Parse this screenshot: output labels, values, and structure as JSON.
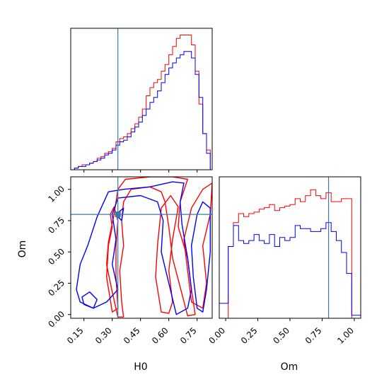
{
  "chart_data": {
    "type": "corner",
    "parameters": [
      "H0",
      "Om"
    ],
    "truths": {
      "H0": 0.33,
      "Om": 0.8
    },
    "truth_color": "#3a78a8",
    "series": [
      {
        "color": "#ff0000"
      },
      {
        "color": "#0000ff"
      }
    ],
    "panels": [
      {
        "id": "hist-H0",
        "type": "step-histogram",
        "param": "H0",
        "xlim": [
          0.08,
          0.83
        ],
        "bin_edges": [
          0.08,
          0.1,
          0.12,
          0.14,
          0.16,
          0.18,
          0.2,
          0.22,
          0.24,
          0.26,
          0.28,
          0.3,
          0.32,
          0.34,
          0.36,
          0.38,
          0.4,
          0.42,
          0.44,
          0.46,
          0.48,
          0.5,
          0.52,
          0.54,
          0.56,
          0.58,
          0.6,
          0.62,
          0.64,
          0.66,
          0.68,
          0.7,
          0.72,
          0.74,
          0.76,
          0.78,
          0.8,
          0.82
        ],
        "counts": [
          [
            0,
            1,
            2,
            3,
            3,
            4,
            5,
            7,
            8,
            10,
            11,
            13,
            17,
            19,
            20,
            22,
            25,
            28,
            32,
            37,
            45,
            50,
            53,
            55,
            60,
            64,
            70,
            75,
            80,
            82,
            82,
            82,
            76,
            60,
            40,
            22,
            12
          ],
          [
            0,
            1,
            2,
            2,
            3,
            4,
            5,
            6,
            7,
            9,
            10,
            12,
            15,
            17,
            18,
            20,
            23,
            26,
            29,
            33,
            37,
            41,
            44,
            48,
            53,
            58,
            62,
            65,
            68,
            70,
            72,
            72,
            68,
            58,
            44,
            22,
            10
          ]
        ],
        "ticks": [
          0.15,
          0.3,
          0.45,
          0.6,
          0.75
        ]
      },
      {
        "id": "contour-H0-Om",
        "type": "contour",
        "xparam": "H0",
        "yparam": "Om",
        "xlim": [
          0.08,
          0.83
        ],
        "ylim": [
          -0.03,
          1.1
        ],
        "xticks": [
          "0.15",
          "0.30",
          "0.45",
          "0.60",
          "0.75"
        ],
        "yticks": [
          "0.00",
          "0.25",
          "0.50",
          "0.75",
          "1.00"
        ],
        "contours": [
          {
            "series": 0,
            "points": [
              [
                0.33,
                -0.02
              ],
              [
                0.3,
                0.18
              ],
              [
                0.27,
                0.4
              ],
              [
                0.28,
                0.58
              ],
              [
                0.31,
                0.8
              ],
              [
                0.33,
                1.0
              ],
              [
                0.37,
                1.08
              ],
              [
                0.5,
                1.1
              ],
              [
                0.62,
                1.1
              ],
              [
                0.7,
                1.08
              ],
              [
                0.66,
                0.9
              ],
              [
                0.65,
                0.7
              ],
              [
                0.7,
                0.45
              ],
              [
                0.72,
                0.2
              ],
              [
                0.74,
                0.0
              ],
              [
                0.7,
                -0.01
              ],
              [
                0.66,
                0.22
              ],
              [
                0.62,
                0.45
              ],
              [
                0.6,
                0.7
              ],
              [
                0.58,
                0.9
              ],
              [
                0.56,
                0.98
              ],
              [
                0.5,
                1.02
              ],
              [
                0.4,
                1.0
              ],
              [
                0.36,
                0.9
              ],
              [
                0.35,
                0.75
              ],
              [
                0.36,
                0.55
              ],
              [
                0.34,
                0.35
              ],
              [
                0.35,
                0.1
              ],
              [
                0.36,
                -0.02
              ]
            ]
          },
          {
            "series": 0,
            "points": [
              [
                0.3,
                0.02
              ],
              [
                0.27,
                0.3
              ],
              [
                0.28,
                0.55
              ],
              [
                0.3,
                0.7
              ],
              [
                0.29,
                0.8
              ],
              [
                0.31,
                0.86
              ],
              [
                0.33,
                0.75
              ],
              [
                0.32,
                0.55
              ],
              [
                0.32,
                0.3
              ],
              [
                0.33,
                0.05
              ]
            ]
          },
          {
            "series": 0,
            "points": [
              [
                0.56,
                0.02
              ],
              [
                0.53,
                0.3
              ],
              [
                0.54,
                0.55
              ],
              [
                0.56,
                0.85
              ],
              [
                0.61,
                0.95
              ],
              [
                0.65,
                0.86
              ],
              [
                0.62,
                0.6
              ],
              [
                0.6,
                0.35
              ],
              [
                0.62,
                0.1
              ],
              [
                0.6,
                0.01
              ]
            ]
          },
          {
            "series": 0,
            "points": [
              [
                0.72,
                0.1
              ],
              [
                0.7,
                0.35
              ],
              [
                0.68,
                0.6
              ],
              [
                0.72,
                0.85
              ],
              [
                0.78,
                1.0
              ],
              [
                0.83,
                1.05
              ],
              [
                0.82,
                0.8
              ],
              [
                0.78,
                0.55
              ],
              [
                0.8,
                0.25
              ],
              [
                0.78,
                0.05
              ]
            ]
          },
          {
            "series": 1,
            "points": [
              [
                0.11,
                0.2
              ],
              [
                0.13,
                0.4
              ],
              [
                0.17,
                0.55
              ],
              [
                0.22,
                0.78
              ],
              [
                0.28,
                0.98
              ],
              [
                0.36,
                1.0
              ],
              [
                0.5,
                1.02
              ],
              [
                0.62,
                1.06
              ],
              [
                0.68,
                1.05
              ],
              [
                0.66,
                0.9
              ],
              [
                0.67,
                0.72
              ],
              [
                0.7,
                0.45
              ],
              [
                0.72,
                0.2
              ],
              [
                0.7,
                0.05
              ],
              [
                0.64,
                0.0
              ],
              [
                0.6,
                0.25
              ],
              [
                0.56,
                0.5
              ],
              [
                0.57,
                0.75
              ],
              [
                0.54,
                0.9
              ],
              [
                0.45,
                0.95
              ],
              [
                0.33,
                0.93
              ],
              [
                0.3,
                0.8
              ],
              [
                0.32,
                0.6
              ],
              [
                0.3,
                0.4
              ],
              [
                0.33,
                0.2
              ],
              [
                0.27,
                0.1
              ],
              [
                0.2,
                0.05
              ],
              [
                0.13,
                0.1
              ]
            ]
          },
          {
            "series": 1,
            "points": [
              [
                0.14,
                0.14
              ],
              [
                0.18,
                0.18
              ],
              [
                0.22,
                0.12
              ],
              [
                0.2,
                0.05
              ],
              [
                0.15,
                0.08
              ]
            ]
          },
          {
            "series": 1,
            "points": [
              [
                0.75,
                0.05
              ],
              [
                0.73,
                0.3
              ],
              [
                0.72,
                0.55
              ],
              [
                0.75,
                0.8
              ],
              [
                0.78,
                0.9
              ],
              [
                0.82,
                0.85
              ],
              [
                0.82,
                0.5
              ],
              [
                0.8,
                0.2
              ],
              [
                0.78,
                0.02
              ]
            ]
          },
          {
            "series": 1,
            "points": [
              [
                0.32,
                0.8
              ],
              [
                0.35,
                0.75
              ],
              [
                0.36,
                0.85
              ]
            ]
          }
        ]
      },
      {
        "id": "hist-Om",
        "type": "step-histogram",
        "param": "Om",
        "xlim": [
          -0.05,
          1.05
        ],
        "bin_edges": [
          -0.05,
          0.0,
          0.02,
          0.06,
          0.1,
          0.14,
          0.18,
          0.22,
          0.26,
          0.3,
          0.34,
          0.38,
          0.42,
          0.46,
          0.5,
          0.54,
          0.58,
          0.62,
          0.66,
          0.7,
          0.74,
          0.78,
          0.82,
          0.86,
          0.9,
          0.94,
          0.98,
          1.02,
          1.05
        ],
        "counts": [
          [
            0,
            0,
            48,
            64,
            70,
            68,
            70,
            71,
            73,
            74,
            76,
            72,
            74,
            75,
            76,
            80,
            78,
            82,
            86,
            82,
            80,
            84,
            78,
            78,
            80,
            80,
            0,
            0
          ],
          [
            10,
            10,
            48,
            62,
            52,
            50,
            52,
            56,
            52,
            50,
            56,
            48,
            54,
            52,
            54,
            62,
            60,
            60,
            58,
            58,
            60,
            64,
            58,
            52,
            44,
            30,
            2,
            2
          ]
        ],
        "xticks": [
          "0.00",
          "0.25",
          "0.50",
          "0.75",
          "1.00"
        ]
      }
    ],
    "xlabels": [
      "H0",
      "Om"
    ],
    "ylabels": [
      "",
      "Om"
    ]
  }
}
